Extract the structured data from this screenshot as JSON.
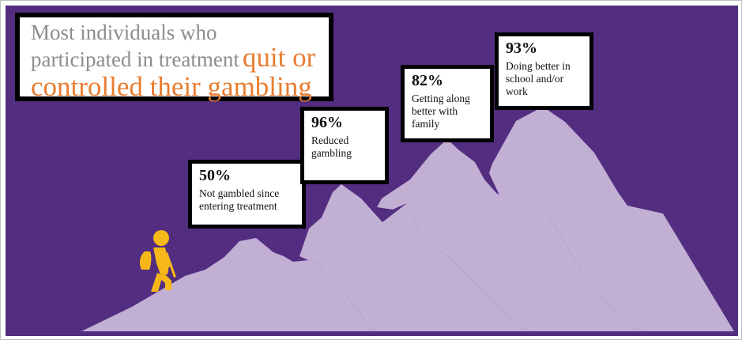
{
  "title": {
    "line_gray": "Most individuals who participated in treatment",
    "line_orange": "quit or controlled their gambling"
  },
  "stats": [
    {
      "percent": "50%",
      "description": "Not gambled since entering treatment"
    },
    {
      "percent": "96%",
      "description": "Reduced gambling"
    },
    {
      "percent": "82%",
      "description": "Getting along better with family"
    },
    {
      "percent": "93%",
      "description": "Doing better in school and/or work"
    }
  ],
  "colors": {
    "background": "#522d80",
    "mountain": "#c1afd4",
    "hiker": "#f6b818",
    "title_gray": "#8d8d8d",
    "title_orange": "#e97d30"
  },
  "icons": {
    "hiker": "hiker-icon"
  }
}
